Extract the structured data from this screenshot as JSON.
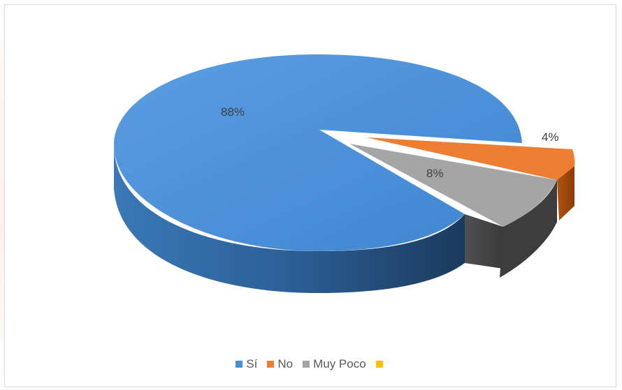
{
  "chart_data": {
    "type": "pie",
    "title": "",
    "categories": [
      "Sí",
      "No",
      "Muy Poco",
      ""
    ],
    "values": [
      88,
      4,
      8,
      0
    ],
    "data_labels": [
      "88%",
      "4%",
      "8%",
      ""
    ],
    "colors": [
      "#4a8fd6",
      "#ed7d31",
      "#a5a5a5",
      "#ffc000"
    ],
    "style": "3d-exploded",
    "legend_position": "bottom"
  }
}
